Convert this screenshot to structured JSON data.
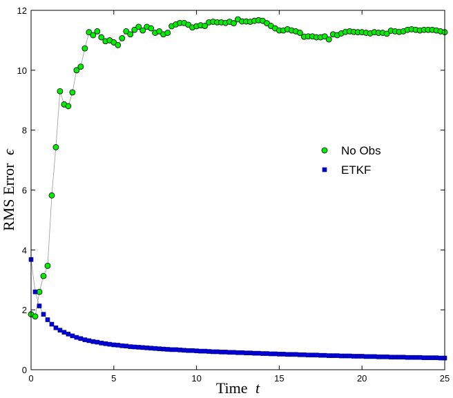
{
  "chart_data": {
    "type": "scatter",
    "xlabel_text": "Time",
    "xlabel_var": "t",
    "ylabel_text": "RMS Error",
    "ylabel_var": "ϵ",
    "xlim": [
      0,
      25
    ],
    "ylim": [
      0,
      12
    ],
    "xticks": [
      0,
      5,
      10,
      15,
      20,
      25
    ],
    "yticks": [
      0,
      2,
      4,
      6,
      8,
      10,
      12
    ],
    "grid": false,
    "legend_position": "center-right",
    "series": [
      {
        "name": "No Obs",
        "marker": "circle",
        "color": "#00ee00",
        "edge": "#000000",
        "connect_line_color": "#999999",
        "points": [
          [
            0.0,
            1.85
          ],
          [
            0.25,
            1.78
          ],
          [
            0.5,
            2.6
          ],
          [
            0.75,
            3.13
          ],
          [
            1.0,
            3.47
          ],
          [
            1.25,
            5.82
          ],
          [
            1.5,
            7.43
          ],
          [
            1.75,
            9.3
          ],
          [
            2.0,
            8.86
          ],
          [
            2.25,
            8.8
          ],
          [
            2.5,
            9.26
          ],
          [
            2.75,
            10.0
          ],
          [
            3.0,
            10.12
          ],
          [
            3.25,
            10.73
          ],
          [
            3.5,
            11.27
          ],
          [
            3.75,
            11.17
          ],
          [
            4.0,
            11.3
          ],
          [
            4.25,
            11.1
          ],
          [
            4.5,
            10.97
          ],
          [
            4.75,
            11.0
          ],
          [
            5.0,
            10.93
          ],
          [
            5.25,
            10.84
          ],
          [
            5.5,
            11.07
          ],
          [
            5.75,
            11.3
          ],
          [
            6.0,
            11.2
          ],
          [
            6.25,
            11.35
          ],
          [
            6.5,
            11.45
          ],
          [
            6.75,
            11.33
          ],
          [
            7.0,
            11.45
          ],
          [
            7.25,
            11.4
          ],
          [
            7.5,
            11.25
          ],
          [
            7.75,
            11.3
          ],
          [
            8.0,
            11.2
          ],
          [
            8.25,
            11.25
          ],
          [
            8.5,
            11.47
          ],
          [
            8.75,
            11.53
          ],
          [
            9.0,
            11.58
          ],
          [
            9.25,
            11.58
          ],
          [
            9.5,
            11.52
          ],
          [
            9.75,
            11.43
          ],
          [
            10.0,
            11.47
          ],
          [
            10.25,
            11.5
          ],
          [
            10.5,
            11.48
          ],
          [
            10.75,
            11.6
          ],
          [
            11.0,
            11.62
          ],
          [
            11.25,
            11.6
          ],
          [
            11.5,
            11.6
          ],
          [
            11.75,
            11.58
          ],
          [
            12.0,
            11.62
          ],
          [
            12.25,
            11.57
          ],
          [
            12.5,
            11.7
          ],
          [
            12.75,
            11.63
          ],
          [
            13.0,
            11.63
          ],
          [
            13.25,
            11.62
          ],
          [
            13.5,
            11.65
          ],
          [
            13.75,
            11.67
          ],
          [
            14.0,
            11.65
          ],
          [
            14.25,
            11.57
          ],
          [
            14.5,
            11.48
          ],
          [
            14.75,
            11.4
          ],
          [
            15.0,
            11.33
          ],
          [
            15.25,
            11.33
          ],
          [
            15.5,
            11.37
          ],
          [
            15.75,
            11.33
          ],
          [
            16.0,
            11.3
          ],
          [
            16.25,
            11.25
          ],
          [
            16.5,
            11.12
          ],
          [
            16.75,
            11.13
          ],
          [
            17.0,
            11.13
          ],
          [
            17.25,
            11.1
          ],
          [
            17.5,
            11.1
          ],
          [
            17.75,
            11.13
          ],
          [
            18.0,
            11.03
          ],
          [
            18.25,
            11.2
          ],
          [
            18.5,
            11.17
          ],
          [
            18.75,
            11.23
          ],
          [
            19.0,
            11.28
          ],
          [
            19.25,
            11.3
          ],
          [
            19.5,
            11.28
          ],
          [
            19.75,
            11.27
          ],
          [
            20.0,
            11.27
          ],
          [
            20.25,
            11.25
          ],
          [
            20.5,
            11.23
          ],
          [
            20.75,
            11.27
          ],
          [
            21.0,
            11.25
          ],
          [
            21.25,
            11.25
          ],
          [
            21.5,
            11.22
          ],
          [
            21.75,
            11.32
          ],
          [
            22.0,
            11.3
          ],
          [
            22.25,
            11.28
          ],
          [
            22.5,
            11.3
          ],
          [
            22.75,
            11.35
          ],
          [
            23.0,
            11.37
          ],
          [
            23.25,
            11.35
          ],
          [
            23.5,
            11.33
          ],
          [
            23.75,
            11.35
          ],
          [
            24.0,
            11.35
          ],
          [
            24.25,
            11.35
          ],
          [
            24.5,
            11.33
          ],
          [
            24.75,
            11.3
          ],
          [
            25.0,
            11.27
          ]
        ]
      },
      {
        "name": "ETKF",
        "marker": "square",
        "color": "#0000dd",
        "edge": "#000066",
        "connect_line_color": "#999999",
        "points": [
          [
            0.0,
            3.68
          ],
          [
            0.25,
            2.6
          ],
          [
            0.5,
            2.13
          ],
          [
            0.75,
            1.85
          ],
          [
            1.0,
            1.67
          ],
          [
            1.25,
            1.52
          ],
          [
            1.5,
            1.4
          ],
          [
            1.75,
            1.32
          ],
          [
            2.0,
            1.25
          ],
          [
            2.25,
            1.19
          ],
          [
            2.5,
            1.13
          ],
          [
            2.75,
            1.08
          ],
          [
            3.0,
            1.04
          ],
          [
            3.25,
            1.0
          ],
          [
            3.5,
            0.97
          ],
          [
            3.75,
            0.94
          ],
          [
            4.0,
            0.92
          ],
          [
            4.25,
            0.89
          ],
          [
            4.5,
            0.87
          ],
          [
            4.75,
            0.85
          ],
          [
            5.0,
            0.83
          ],
          [
            5.25,
            0.82
          ],
          [
            5.5,
            0.8
          ],
          [
            5.75,
            0.79
          ],
          [
            6.0,
            0.77
          ],
          [
            6.25,
            0.76
          ],
          [
            6.5,
            0.75
          ],
          [
            6.75,
            0.74
          ],
          [
            7.0,
            0.73
          ],
          [
            7.25,
            0.72
          ],
          [
            7.5,
            0.71
          ],
          [
            7.75,
            0.7
          ],
          [
            8.0,
            0.69
          ],
          [
            8.25,
            0.68
          ],
          [
            8.5,
            0.67
          ],
          [
            8.75,
            0.67
          ],
          [
            9.0,
            0.66
          ],
          [
            9.25,
            0.65
          ],
          [
            9.5,
            0.64
          ],
          [
            9.75,
            0.64
          ],
          [
            10.0,
            0.63
          ],
          [
            10.25,
            0.62
          ],
          [
            10.5,
            0.62
          ],
          [
            10.75,
            0.61
          ],
          [
            11.0,
            0.6
          ],
          [
            11.25,
            0.6
          ],
          [
            11.5,
            0.59
          ],
          [
            11.75,
            0.59
          ],
          [
            12.0,
            0.58
          ],
          [
            12.25,
            0.58
          ],
          [
            12.5,
            0.57
          ],
          [
            12.75,
            0.57
          ],
          [
            13.0,
            0.56
          ],
          [
            13.25,
            0.56
          ],
          [
            13.5,
            0.55
          ],
          [
            13.75,
            0.55
          ],
          [
            14.0,
            0.54
          ],
          [
            14.25,
            0.54
          ],
          [
            14.5,
            0.53
          ],
          [
            14.75,
            0.53
          ],
          [
            15.0,
            0.52
          ],
          [
            15.25,
            0.52
          ],
          [
            15.5,
            0.51
          ],
          [
            15.75,
            0.51
          ],
          [
            16.0,
            0.51
          ],
          [
            16.25,
            0.5
          ],
          [
            16.5,
            0.5
          ],
          [
            16.75,
            0.49
          ],
          [
            17.0,
            0.49
          ],
          [
            17.25,
            0.49
          ],
          [
            17.5,
            0.48
          ],
          [
            17.75,
            0.48
          ],
          [
            18.0,
            0.47
          ],
          [
            18.25,
            0.47
          ],
          [
            18.5,
            0.47
          ],
          [
            18.75,
            0.46
          ],
          [
            19.0,
            0.46
          ],
          [
            19.25,
            0.46
          ],
          [
            19.5,
            0.45
          ],
          [
            19.75,
            0.45
          ],
          [
            20.0,
            0.45
          ],
          [
            20.25,
            0.44
          ],
          [
            20.5,
            0.44
          ],
          [
            20.75,
            0.44
          ],
          [
            21.0,
            0.43
          ],
          [
            21.25,
            0.43
          ],
          [
            21.5,
            0.43
          ],
          [
            21.75,
            0.42
          ],
          [
            22.0,
            0.42
          ],
          [
            22.25,
            0.42
          ],
          [
            22.5,
            0.42
          ],
          [
            22.75,
            0.41
          ],
          [
            23.0,
            0.41
          ],
          [
            23.25,
            0.41
          ],
          [
            23.5,
            0.41
          ],
          [
            23.75,
            0.4
          ],
          [
            24.0,
            0.4
          ],
          [
            24.25,
            0.4
          ],
          [
            24.5,
            0.4
          ],
          [
            24.75,
            0.39
          ],
          [
            25.0,
            0.39
          ]
        ]
      }
    ]
  }
}
